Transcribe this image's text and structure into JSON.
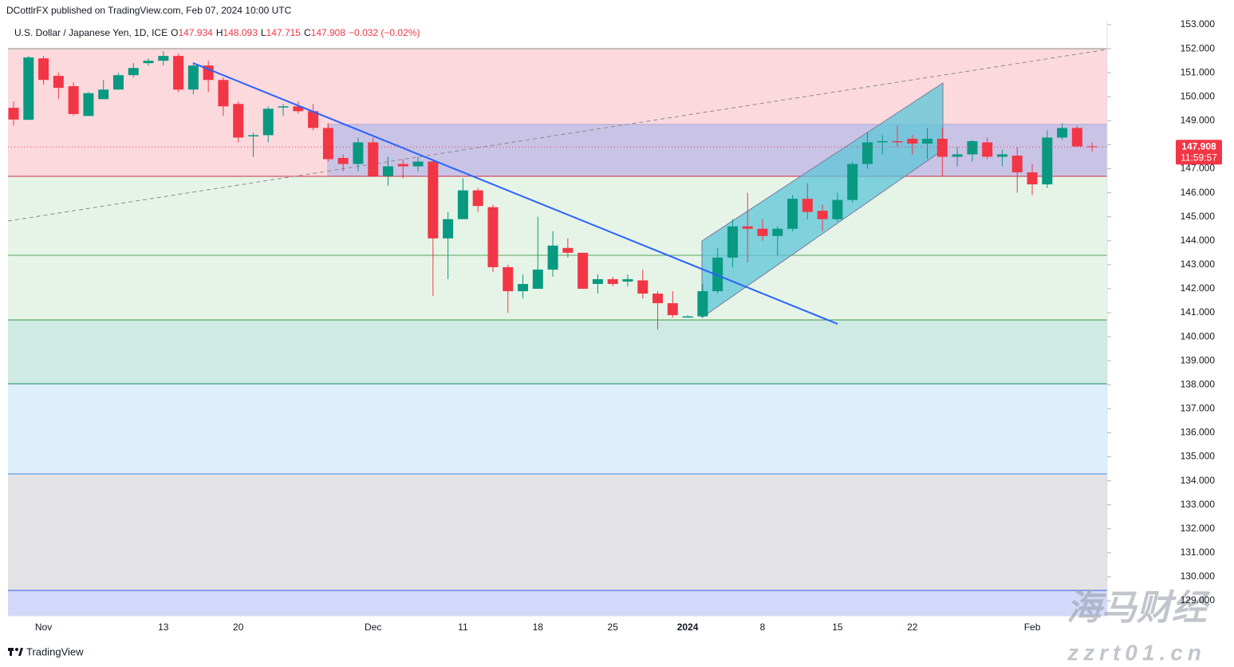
{
  "chart_data": {
    "type": "candlestick",
    "title": "DCottlrFX published on TradingView.com, Feb 07, 2024 10:00 UTC",
    "symbol": "U.S. Dollar / Japanese Yen, 1D, ICE",
    "ohlc_legend": [
      [
        "O",
        "147.934"
      ],
      [
        "H",
        "148.093"
      ],
      [
        "L",
        "147.715"
      ],
      [
        "C",
        "147.908"
      ]
    ],
    "change": "−0.032 (−0.02%)",
    "last_price_label": "147.908",
    "countdown": "11:59:57",
    "brand": "TradingView",
    "watermark": [
      "海马财经",
      "zzrt01.cn"
    ],
    "up_color": "#089981",
    "down_color": "#f23645",
    "categories": [
      null,
      null,
      "Nov",
      null,
      null,
      null,
      null,
      null,
      null,
      null,
      "13",
      null,
      null,
      null,
      null,
      "20",
      null,
      null,
      null,
      null,
      null,
      null,
      null,
      null,
      "Dec",
      null,
      null,
      null,
      null,
      null,
      "11",
      null,
      null,
      null,
      null,
      "18",
      null,
      null,
      null,
      null,
      "25",
      null,
      null,
      null,
      null,
      "2024",
      null,
      null,
      null,
      null,
      "8",
      null,
      null,
      null,
      null,
      "15",
      null,
      null,
      null,
      null,
      "22",
      null,
      null,
      null,
      null,
      null,
      null,
      null,
      "Feb",
      null,
      null,
      null,
      null
    ],
    "open": [
      149.54,
      149.04,
      151.6,
      150.87,
      150.44,
      149.2,
      149.9,
      150.3,
      150.9,
      151.4,
      151.5,
      151.7,
      150.3,
      151.3,
      150.7,
      149.7,
      148.35,
      148.4,
      149.55,
      149.6,
      149.4,
      148.7,
      147.45,
      147.2,
      148.1,
      146.7,
      147.2,
      147.1,
      147.3,
      144.1,
      144.9,
      146.1,
      145.4,
      142.9,
      141.9,
      142.0,
      142.8,
      143.7,
      143.5,
      142.2,
      142.4,
      142.3,
      142.35,
      141.8,
      141.4,
      140.8,
      140.85,
      141.9,
      143.3,
      144.6,
      144.5,
      144.2,
      144.5,
      145.75,
      145.25,
      144.9,
      145.7,
      147.2,
      148.1,
      148.15,
      148.25,
      148.05,
      148.25,
      147.5,
      147.6,
      148.1,
      147.5,
      147.55,
      146.85,
      146.35,
      148.3,
      148.7,
      147.934
    ],
    "high": [
      149.8,
      151.7,
      151.7,
      151.0,
      150.6,
      150.2,
      150.7,
      151.0,
      151.4,
      151.6,
      151.9,
      151.8,
      151.4,
      151.5,
      150.8,
      149.8,
      148.5,
      149.6,
      149.7,
      149.8,
      149.7,
      148.9,
      147.6,
      148.3,
      148.3,
      147.5,
      147.4,
      147.5,
      147.4,
      145.2,
      146.6,
      146.2,
      145.5,
      143.0,
      142.6,
      145.0,
      144.4,
      144.1,
      143.5,
      142.6,
      142.5,
      142.6,
      142.8,
      141.9,
      141.9,
      140.9,
      142.2,
      143.7,
      144.9,
      146.0,
      144.9,
      144.6,
      145.9,
      146.4,
      145.5,
      146.0,
      147.3,
      148.5,
      148.4,
      148.8,
      148.4,
      148.7,
      148.7,
      147.9,
      148.2,
      148.3,
      147.8,
      147.9,
      147.2,
      148.6,
      148.9,
      148.8,
      148.093
    ],
    "low": [
      148.8,
      149.04,
      150.5,
      149.9,
      149.2,
      149.2,
      149.9,
      150.3,
      150.8,
      151.3,
      151.3,
      150.2,
      150.1,
      150.2,
      149.2,
      148.1,
      147.5,
      148.1,
      149.2,
      149.3,
      148.6,
      147.3,
      146.9,
      146.9,
      146.7,
      146.3,
      146.6,
      146.9,
      141.7,
      142.4,
      144.9,
      145.2,
      142.7,
      141.0,
      141.6,
      142.0,
      142.5,
      143.3,
      142.0,
      141.8,
      142.1,
      142.1,
      141.6,
      140.3,
      140.8,
      140.8,
      140.8,
      141.8,
      142.9,
      143.1,
      144.0,
      143.4,
      144.4,
      144.9,
      144.4,
      144.8,
      145.6,
      147.0,
      147.6,
      147.9,
      147.6,
      147.4,
      146.7,
      147.1,
      147.3,
      147.4,
      147.1,
      146.0,
      145.9,
      146.2,
      148.2,
      147.9,
      147.715
    ],
    "close": [
      149.05,
      151.64,
      150.7,
      150.37,
      149.28,
      150.15,
      150.3,
      150.9,
      151.2,
      151.5,
      151.7,
      150.3,
      151.3,
      150.7,
      149.6,
      148.3,
      148.4,
      149.5,
      149.6,
      149.4,
      148.7,
      147.4,
      147.2,
      148.1,
      146.7,
      147.1,
      147.1,
      147.3,
      144.1,
      144.9,
      146.1,
      145.45,
      142.9,
      141.9,
      142.2,
      142.8,
      143.8,
      143.5,
      142.0,
      142.4,
      142.2,
      142.4,
      141.8,
      141.4,
      140.9,
      140.85,
      141.9,
      143.3,
      144.6,
      144.5,
      144.2,
      144.5,
      145.75,
      145.2,
      144.9,
      145.7,
      147.2,
      148.1,
      148.15,
      148.1,
      148.05,
      148.25,
      147.5,
      147.6,
      148.15,
      147.5,
      147.6,
      146.85,
      146.35,
      148.3,
      148.7,
      147.93,
      147.908
    ],
    "ylim": [
      128.37,
      153.2
    ],
    "yticks": [
      {
        "value": 129,
        "label": "129.000"
      },
      {
        "value": 130,
        "label": "130.000"
      },
      {
        "value": 131,
        "label": "131.000"
      },
      {
        "value": 132,
        "label": "132.000"
      },
      {
        "value": 133,
        "label": "133.000"
      },
      {
        "value": 134,
        "label": "134.000"
      },
      {
        "value": 135,
        "label": "135.000"
      },
      {
        "value": 136,
        "label": "136.000"
      },
      {
        "value": 137,
        "label": "137.000"
      },
      {
        "value": 138,
        "label": "138.000"
      },
      {
        "value": 139,
        "label": "139.000"
      },
      {
        "value": 140,
        "label": "140.000"
      },
      {
        "value": 141,
        "label": "141.000"
      },
      {
        "value": 142,
        "label": "142.000"
      },
      {
        "value": 143,
        "label": "143.000"
      },
      {
        "value": 144,
        "label": "144.000"
      },
      {
        "value": 145,
        "label": "145.000"
      },
      {
        "value": 146,
        "label": "146.000"
      },
      {
        "value": 147,
        "label": "147.000"
      },
      {
        "value": 148,
        "label": "148.000"
      },
      {
        "value": 149,
        "label": "149.000"
      },
      {
        "value": 150,
        "label": "150.000"
      },
      {
        "value": 151,
        "label": "151.000"
      },
      {
        "value": 152,
        "label": "152.000"
      },
      {
        "value": 153,
        "label": "153.000"
      }
    ],
    "grid": false
  }
}
